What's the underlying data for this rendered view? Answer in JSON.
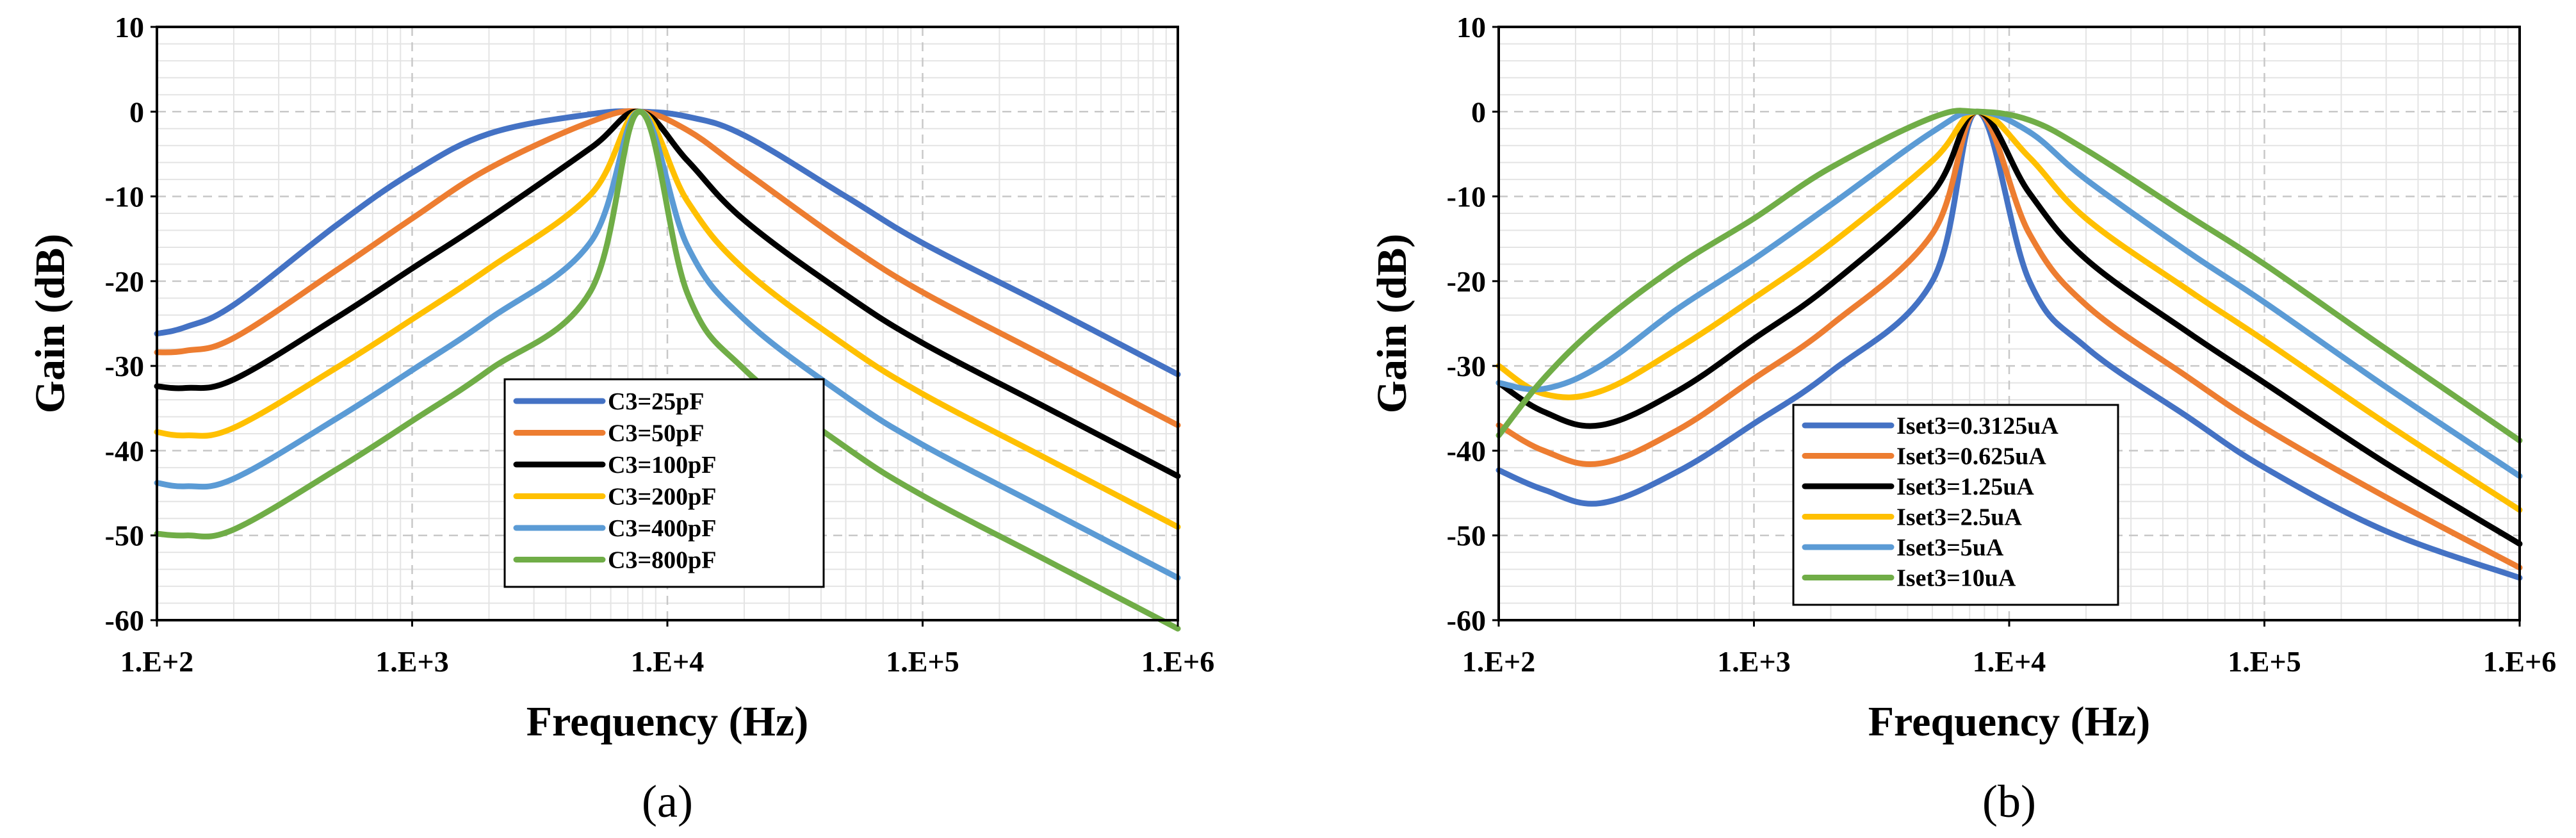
{
  "chart_data": [
    {
      "type": "line",
      "panel_label": "(a)",
      "xlabel": "Frequency (Hz)",
      "ylabel": "Gain (dB)",
      "xscale": "log",
      "xlim": [
        100,
        1000000
      ],
      "ylim": [
        -60,
        10
      ],
      "xticks": [
        100,
        1000,
        10000,
        100000,
        1000000
      ],
      "xtick_labels": [
        "1.E+2",
        "1.E+3",
        "1.E+4",
        "1.E+5",
        "1.E+6"
      ],
      "yticks": [
        10,
        0,
        -10,
        -20,
        -30,
        -40,
        -50,
        -60
      ],
      "ytick_labels": [
        "10",
        "0",
        "-10",
        "-20",
        "-30",
        "-40",
        "-50",
        "-60"
      ],
      "grid": true,
      "legend_position": "center-bottom",
      "x": [
        100,
        130,
        200,
        500,
        1000,
        2000,
        5000,
        7800,
        12000,
        20000,
        50000,
        100000,
        300000,
        1000000
      ],
      "series": [
        {
          "name": "C3=25pF",
          "color": "#4472C4",
          "values": [
            -26.2,
            -25.4,
            -22.8,
            -13.5,
            -7.2,
            -2.6,
            -0.3,
            0.0,
            -0.6,
            -2.8,
            -10.0,
            -15.5,
            -22.8,
            -31.0
          ]
        },
        {
          "name": "C3=50pF",
          "color": "#ED7D31",
          "values": [
            -28.4,
            -28.2,
            -26.7,
            -18.8,
            -12.6,
            -6.7,
            -1.2,
            0.0,
            -2.2,
            -7.0,
            -15.6,
            -21.3,
            -28.8,
            -37.0
          ]
        },
        {
          "name": "C3=100pF",
          "color": "#000000",
          "values": [
            -32.4,
            -32.6,
            -31.6,
            -24.4,
            -18.5,
            -12.6,
            -4.3,
            0.0,
            -5.8,
            -12.8,
            -21.6,
            -27.3,
            -34.8,
            -43.0
          ]
        },
        {
          "name": "C3=200pF",
          "color": "#FFC000",
          "values": [
            -37.8,
            -38.2,
            -37.3,
            -30.3,
            -24.5,
            -18.5,
            -9.8,
            0.0,
            -10.6,
            -18.6,
            -27.6,
            -33.3,
            -40.8,
            -49.0
          ]
        },
        {
          "name": "C3=400pF",
          "color": "#5B9BD5",
          "values": [
            -43.8,
            -44.2,
            -43.3,
            -36.3,
            -30.5,
            -24.5,
            -15.4,
            0.0,
            -15.9,
            -24.5,
            -33.6,
            -39.3,
            -46.8,
            -55.0
          ]
        },
        {
          "name": "C3=800pF",
          "color": "#70AD47",
          "values": [
            -49.8,
            -50.0,
            -49.3,
            -42.3,
            -36.5,
            -30.5,
            -21.2,
            0.0,
            -21.5,
            -30.4,
            -39.6,
            -45.3,
            -52.8,
            -61.0
          ]
        }
      ]
    },
    {
      "type": "line",
      "panel_label": "(b)",
      "xlabel": "Frequency (Hz)",
      "ylabel": "Gain (dB)",
      "xscale": "log",
      "xlim": [
        100,
        1000000
      ],
      "ylim": [
        -60,
        10
      ],
      "xticks": [
        100,
        1000,
        10000,
        100000,
        1000000
      ],
      "xtick_labels": [
        "1.E+2",
        "1.E+3",
        "1.E+4",
        "1.E+5",
        "1.E+6"
      ],
      "yticks": [
        10,
        0,
        -10,
        -20,
        -30,
        -40,
        -50,
        -60
      ],
      "ytick_labels": [
        "10",
        "0",
        "-10",
        "-20",
        "-30",
        "-40",
        "-50",
        "-60"
      ],
      "grid": true,
      "legend_position": "center-bottom",
      "x": [
        100,
        150,
        250,
        500,
        1000,
        2000,
        5000,
        7500,
        12000,
        20000,
        50000,
        100000,
        300000,
        1000000
      ],
      "series": [
        {
          "name": "Iset3=0.3125uA",
          "color": "#4472C4",
          "values": [
            -42.3,
            -44.6,
            -46.2,
            -42.5,
            -36.8,
            -30.7,
            -20.0,
            0.0,
            -20.0,
            -27.8,
            -36.0,
            -42.0,
            -49.5,
            -55.0
          ]
        },
        {
          "name": "Iset3=0.625uA",
          "color": "#ED7D31",
          "values": [
            -37.0,
            -40.0,
            -41.5,
            -37.6,
            -31.5,
            -25.2,
            -14.4,
            0.0,
            -14.4,
            -22.8,
            -31.3,
            -37.3,
            -45.5,
            -53.8
          ]
        },
        {
          "name": "Iset3=1.25uA",
          "color": "#000000",
          "values": [
            -32.0,
            -35.4,
            -37.0,
            -33.0,
            -26.8,
            -20.4,
            -9.6,
            0.0,
            -9.6,
            -17.4,
            -26.0,
            -32.0,
            -41.5,
            -51.0
          ]
        },
        {
          "name": "Iset3=2.5uA",
          "color": "#FFC000",
          "values": [
            -30.0,
            -33.3,
            -33.0,
            -28.0,
            -22.0,
            -15.6,
            -5.8,
            0.0,
            -5.4,
            -12.6,
            -21.0,
            -27.0,
            -36.8,
            -47.0
          ]
        },
        {
          "name": "Iset3=5uA",
          "color": "#5B9BD5",
          "values": [
            -32.0,
            -32.7,
            -30.0,
            -23.3,
            -17.4,
            -11.0,
            -2.4,
            0.0,
            -2.4,
            -8.0,
            -16.5,
            -22.5,
            -32.5,
            -43.0
          ]
        },
        {
          "name": "Iset3=10uA",
          "color": "#70AD47",
          "values": [
            -38.2,
            -31.5,
            -25.0,
            -18.2,
            -12.6,
            -6.6,
            -0.7,
            0.0,
            -1.0,
            -4.5,
            -12.2,
            -18.0,
            -28.0,
            -38.8
          ]
        }
      ]
    }
  ]
}
